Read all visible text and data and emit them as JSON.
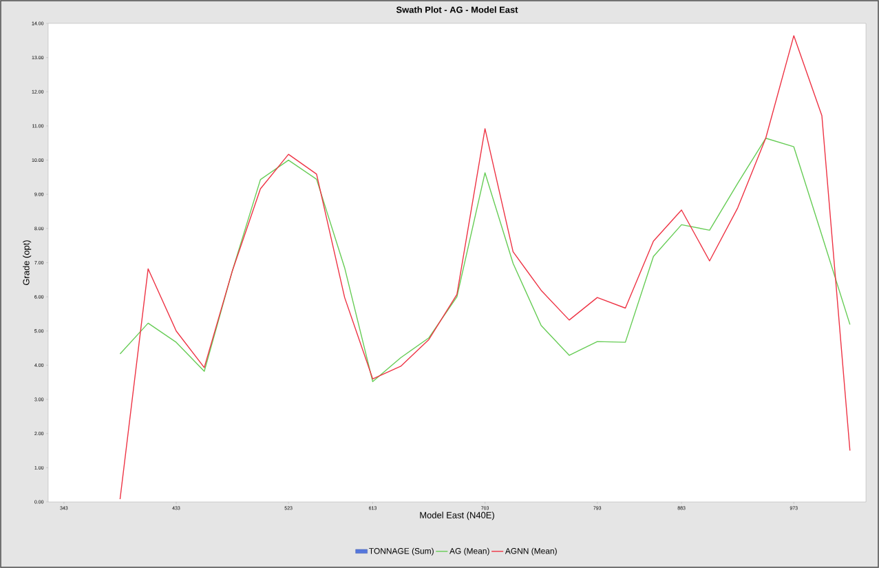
{
  "chart_data": {
    "type": "line",
    "title": "Swath Plot - AG - Model East",
    "xlabel": "Model East (N40E)",
    "ylabel": "Grade (opt)",
    "categories": [
      "343",
      null,
      null,
      null,
      "433",
      null,
      null,
      null,
      "523",
      null,
      null,
      "613",
      null,
      null,
      null,
      "703",
      null,
      null,
      null,
      "793",
      null,
      null,
      "883",
      null,
      null,
      null,
      "973",
      null,
      null
    ],
    "ylim": [
      0,
      14
    ],
    "yticks": [
      {
        "value": 0,
        "label": "0.00"
      },
      {
        "value": 1,
        "label": "1.00"
      },
      {
        "value": 2,
        "label": "2.00"
      },
      {
        "value": 3,
        "label": "3.00"
      },
      {
        "value": 4,
        "label": "4.00"
      },
      {
        "value": 5,
        "label": "5.00"
      },
      {
        "value": 6,
        "label": "6.00"
      },
      {
        "value": 7,
        "label": "7.00"
      },
      {
        "value": 8,
        "label": "8.00"
      },
      {
        "value": 9,
        "label": "9.00"
      },
      {
        "value": 10,
        "label": "10.00"
      },
      {
        "value": 11,
        "label": "11.00"
      },
      {
        "value": 12,
        "label": "12.00"
      },
      {
        "value": 13,
        "label": "13.00"
      },
      {
        "value": 14,
        "label": "14.00"
      }
    ],
    "series": [
      {
        "name": "TONNAGE (Sum)",
        "type": "bar",
        "color": "#5577dd",
        "values": [
          null,
          null,
          null,
          null,
          null,
          null,
          null,
          null,
          null,
          null,
          null,
          null,
          null,
          null,
          null,
          null,
          null,
          null,
          null,
          null,
          null,
          null,
          null,
          null,
          null,
          null,
          null,
          null,
          null
        ]
      },
      {
        "name": "AG (Mean)",
        "color": "#66cc55",
        "values": [
          null,
          null,
          4.33,
          5.23,
          4.67,
          3.82,
          6.76,
          9.43,
          10.0,
          9.44,
          6.85,
          3.52,
          4.22,
          4.8,
          6.0,
          9.63,
          6.98,
          5.16,
          4.29,
          4.69,
          4.67,
          7.18,
          8.11,
          7.95,
          9.32,
          10.64,
          10.39,
          7.8,
          5.19
        ]
      },
      {
        "name": "AGNN (Mean)",
        "color": "#ee3344",
        "values": [
          null,
          null,
          0.08,
          6.82,
          5.0,
          3.93,
          6.76,
          9.16,
          10.17,
          9.59,
          5.98,
          3.6,
          3.97,
          4.75,
          6.07,
          10.92,
          7.32,
          6.19,
          5.32,
          5.98,
          5.67,
          7.63,
          8.54,
          7.05,
          8.6,
          10.64,
          13.64,
          11.3,
          1.5
        ]
      }
    ],
    "grid": false,
    "legend": "bottom"
  }
}
